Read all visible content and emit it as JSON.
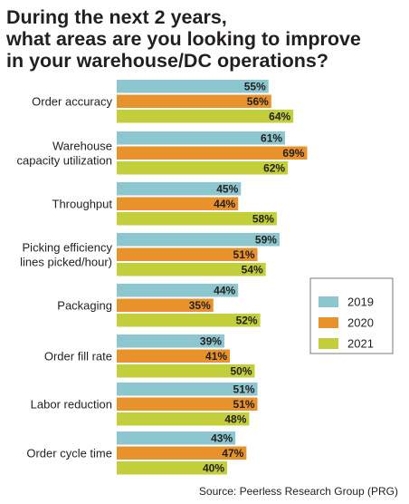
{
  "chart_data": {
    "type": "bar",
    "orientation": "horizontal",
    "title": "During the next 2 years, what areas are you looking to improve in your warehouse/DC operations?",
    "title_lines": [
      "During the next 2 years,",
      "what areas are you looking to improve",
      "in your warehouse/DC operations?"
    ],
    "categories": [
      [
        "Order accuracy"
      ],
      [
        "Warehouse",
        "capacity utilization"
      ],
      [
        "Throughput"
      ],
      [
        "Picking efficiency",
        "lines picked/hour)"
      ],
      [
        "Packaging"
      ],
      [
        "Order fill rate"
      ],
      [
        "Labor reduction"
      ],
      [
        "Order cycle time"
      ]
    ],
    "series": [
      {
        "name": "2019",
        "color": "#8cc6cf",
        "values": [
          55,
          61,
          45,
          59,
          44,
          39,
          51,
          43
        ]
      },
      {
        "name": "2020",
        "color": "#e8922c",
        "values": [
          56,
          69,
          44,
          51,
          35,
          41,
          51,
          47
        ]
      },
      {
        "name": "2021",
        "color": "#c3cf3a",
        "values": [
          64,
          62,
          58,
          54,
          52,
          50,
          48,
          40
        ]
      }
    ],
    "value_suffix": "%",
    "legend_position": "right",
    "grid": false,
    "source": "Source: Peerless Research Group (PRG)"
  }
}
